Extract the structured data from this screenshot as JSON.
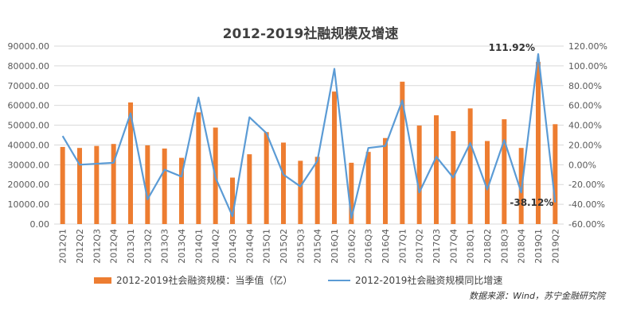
{
  "chart_data": {
    "type": "bar",
    "title": "2012-2019社融规模及增速",
    "categories": [
      "2012Q1",
      "2012Q2",
      "2012Q3",
      "2012Q4",
      "2013Q1",
      "2013Q2",
      "2013Q3",
      "2013Q4",
      "2014Q1",
      "2014Q2",
      "2014Q3",
      "2014Q4",
      "2015Q1",
      "2015Q2",
      "2015Q3",
      "2015Q4",
      "2016Q1",
      "2016Q2",
      "2016Q3",
      "2016Q4",
      "2017Q1",
      "2017Q2",
      "2017Q3",
      "2017Q4",
      "2018Q1",
      "2018Q2",
      "2018Q3",
      "2018Q4",
      "2019Q1",
      "2019Q2"
    ],
    "series": [
      {
        "name": "2012-2019社会融资规模：当季值（亿）",
        "type": "bar",
        "axis": "left",
        "color": "#ED7D31",
        "values": [
          39000,
          38500,
          39500,
          40500,
          61500,
          39800,
          38200,
          33500,
          56500,
          48800,
          23500,
          35300,
          46500,
          41200,
          32000,
          34000,
          67000,
          31000,
          36500,
          43500,
          72000,
          49800,
          55000,
          47000,
          58500,
          42000,
          53000,
          38500,
          82000,
          50500
        ]
      },
      {
        "name": "2012-2019社会融资规模同比增速",
        "type": "line",
        "axis": "right",
        "color": "#5B9BD5",
        "values": [
          29,
          0,
          1,
          2,
          52,
          -35,
          -5,
          -12,
          68,
          -13,
          -52,
          48,
          32,
          -10,
          -22,
          4,
          97,
          -54,
          17,
          19,
          65,
          -28,
          8,
          -13,
          22,
          -25,
          25,
          -28,
          111.92,
          -38.12
        ]
      }
    ],
    "yleft": {
      "min": 0,
      "max": 90000,
      "step": 10000,
      "ticks": [
        "0.00",
        "10000.00",
        "20000.00",
        "30000.00",
        "40000.00",
        "50000.00",
        "60000.00",
        "70000.00",
        "80000.00",
        "90000.00"
      ]
    },
    "yright": {
      "min": -60,
      "max": 120,
      "step": 20,
      "ticks": [
        "-60.00%",
        "-40.00%",
        "-20.00%",
        "0.00%",
        "20.00%",
        "40.00%",
        "60.00%",
        "80.00%",
        "100.00%",
        "120.00%"
      ]
    },
    "annotations": [
      "111.92%",
      "-38.12%"
    ],
    "grid": true,
    "legend_position": "bottom"
  },
  "source_text": "数据来源：Wind，苏宁金融研究院"
}
